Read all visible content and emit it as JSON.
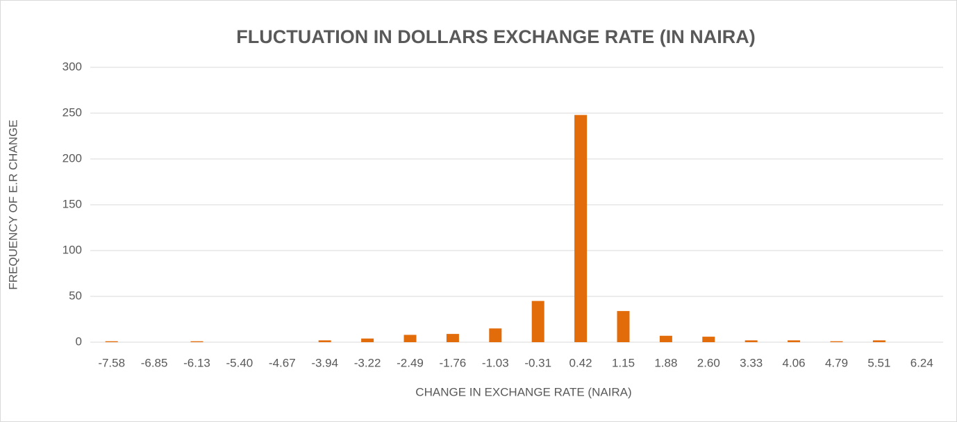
{
  "chart_data": {
    "type": "bar",
    "title": "FLUCTUATION IN DOLLARS EXCHANGE RATE (IN NAIRA)",
    "x_label": "CHANGE IN EXCHANGE RATE (NAIRA)",
    "y_label": "FREQUENCY OF E.R CHANGE",
    "categories": [
      "-7.58",
      "-6.85",
      "-6.13",
      "-5.40",
      "-4.67",
      "-3.94",
      "-3.22",
      "-2.49",
      "-1.76",
      "-1.03",
      "-0.31",
      "0.42",
      "1.15",
      "1.88",
      "2.60",
      "3.33",
      "4.06",
      "4.79",
      "5.51",
      "6.24"
    ],
    "values": [
      1,
      0,
      1,
      0,
      0,
      2,
      4,
      8,
      9,
      15,
      45,
      248,
      34,
      7,
      6,
      2,
      2,
      1,
      2,
      0
    ],
    "color": "#e36c0a",
    "ylim": [
      0,
      300
    ],
    "yticks": [
      0,
      50,
      100,
      150,
      200,
      250,
      300
    ],
    "grid": true
  }
}
